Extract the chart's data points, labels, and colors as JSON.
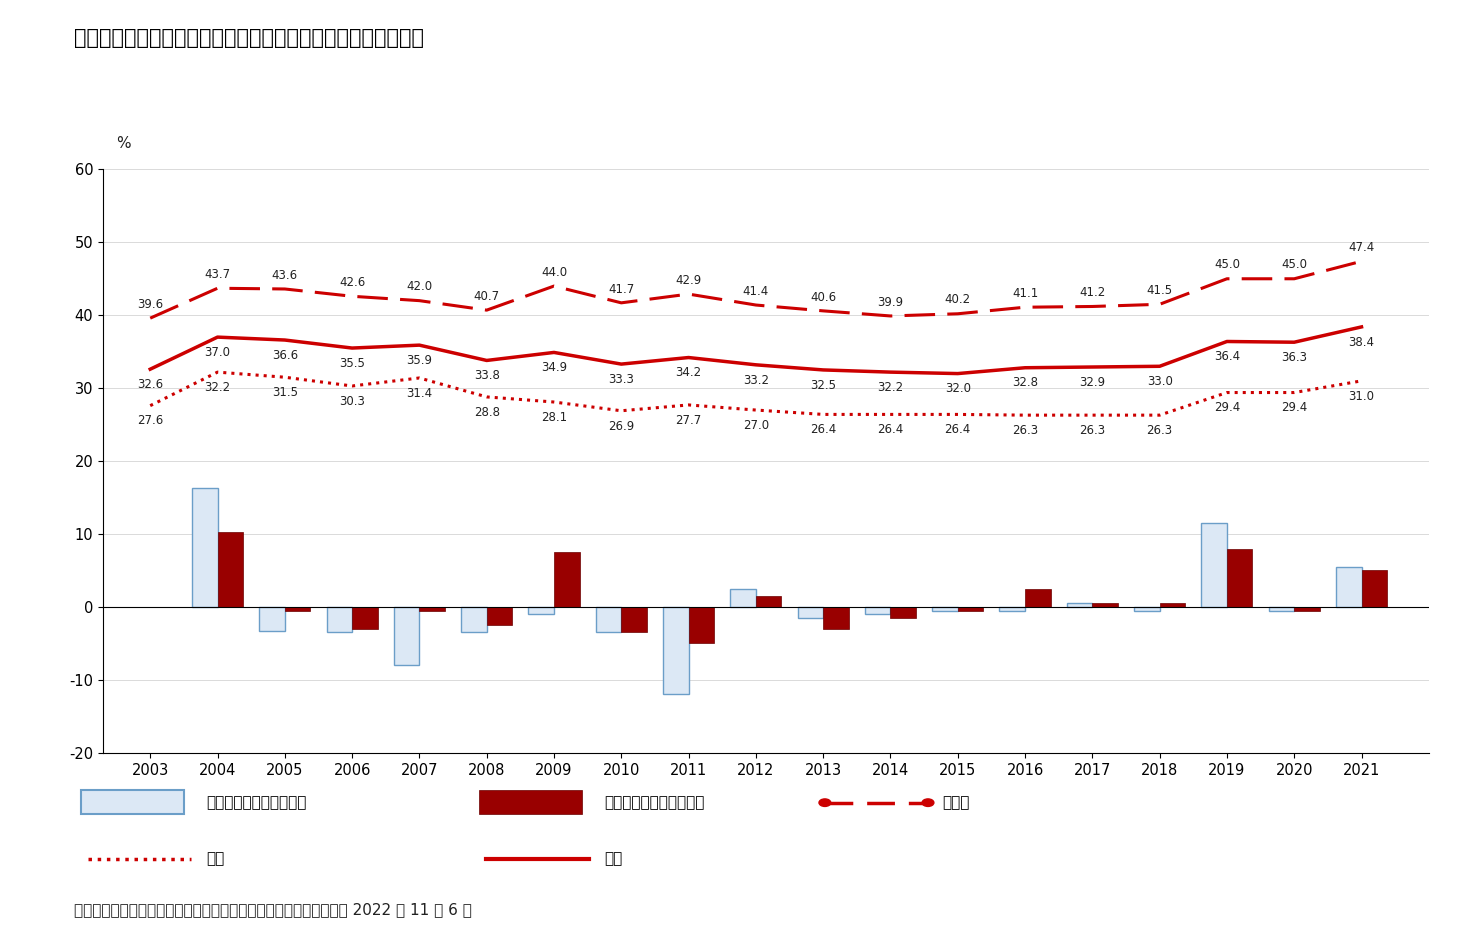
{
  "title": "韓国における非正規労働者の割合や対前年比増減率（男女別）",
  "years": [
    2003,
    2004,
    2005,
    2006,
    2007,
    2008,
    2009,
    2010,
    2011,
    2012,
    2013,
    2014,
    2015,
    2016,
    2017,
    2018,
    2019,
    2020,
    2021
  ],
  "danjo_kei": [
    39.6,
    43.7,
    43.6,
    42.6,
    42.0,
    40.7,
    44.0,
    41.7,
    42.9,
    41.4,
    40.6,
    39.9,
    40.2,
    41.1,
    41.2,
    41.5,
    45.0,
    45.0,
    47.4
  ],
  "dansei": [
    27.6,
    32.2,
    31.5,
    30.3,
    31.4,
    28.8,
    28.1,
    26.9,
    27.7,
    27.0,
    26.4,
    26.4,
    26.4,
    26.3,
    26.3,
    26.3,
    29.4,
    29.4,
    31.0
  ],
  "josei": [
    32.6,
    37.0,
    36.6,
    35.5,
    35.9,
    33.8,
    34.9,
    33.3,
    34.2,
    33.2,
    32.5,
    32.2,
    32.0,
    32.8,
    32.9,
    33.0,
    36.4,
    36.3,
    38.4
  ],
  "bar_male": [
    null,
    16.3,
    -3.3,
    -3.5,
    -8.0,
    -3.5,
    -1.0,
    -3.5,
    -12.0,
    2.5,
    -1.5,
    -1.0,
    -0.5,
    -0.5,
    0.5,
    -0.5,
    11.5,
    -0.5,
    5.5
  ],
  "bar_female": [
    null,
    10.3,
    -0.5,
    -3.0,
    -0.5,
    -2.5,
    7.5,
    -3.5,
    -5.0,
    1.5,
    -3.0,
    -1.5,
    -0.5,
    2.5,
    0.5,
    0.5,
    8.0,
    -0.5,
    5.0
  ],
  "ylim": [
    -20,
    60
  ],
  "yticks": [
    -20,
    -10,
    0,
    10,
    20,
    30,
    40,
    50,
    60
  ],
  "bg_color": "#ffffff",
  "color_danjo_kei": "#cc0000",
  "color_dansei_line": "#cc0000",
  "color_josei_line": "#cc0000",
  "color_bar_male_face": "#dce8f5",
  "color_bar_male_edge": "#6b9ec8",
  "color_bar_female_face": "#990000",
  "color_bar_female_edge": "#6b0000",
  "footnote": "出所）統計庁「経済活動人口調査」各年より筆者作成。最終利用日 2022 年 11 月 6 日",
  "legend_row1": [
    "対前年比増減率（男性）",
    "対前年比増減率（女性）",
    "男女計"
  ],
  "legend_row2": [
    "男性",
    "女性"
  ]
}
